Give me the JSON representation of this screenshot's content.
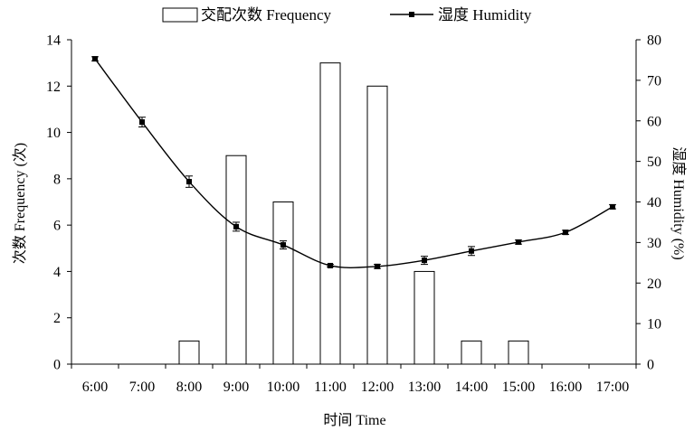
{
  "chart_data": {
    "type": "bar",
    "categories": [
      "6:00",
      "7:00",
      "8:00",
      "9:00",
      "10:00",
      "11:00",
      "12:00",
      "13:00",
      "14:00",
      "15:00",
      "16:00",
      "17:00"
    ],
    "series": [
      {
        "name": "交配次数 Frequency",
        "type": "bar",
        "axis": "left",
        "values": [
          0,
          0,
          1,
          9,
          7,
          13,
          12,
          4,
          1,
          1,
          0,
          0
        ]
      },
      {
        "name": "湿度 Humidity",
        "type": "line",
        "axis": "right",
        "smooth": true,
        "marker": "square",
        "values": [
          75.3,
          59.7,
          45.0,
          33.9,
          29.4,
          24.3,
          24.1,
          25.6,
          27.9,
          30.1,
          32.5,
          38.8
        ],
        "error": [
          0.5,
          1.2,
          1.4,
          1.1,
          1.0,
          0.3,
          0.5,
          1.0,
          1.1,
          0.5,
          0.5,
          0.5
        ]
      }
    ],
    "xlabel": "时间 Time",
    "ylabel": "次数 Frequency (次)",
    "ylabel_right": "湿度 Humidity (%)",
    "ylim": [
      0,
      14
    ],
    "ylim_right": [
      0,
      80
    ],
    "yticks": [
      "0",
      "2",
      "4",
      "6",
      "8",
      "10",
      "12",
      "14"
    ],
    "yticks_right": [
      "0",
      "10",
      "20",
      "30",
      "40",
      "50",
      "60",
      "70",
      "80"
    ],
    "grid": false,
    "legend": "top-center",
    "colors": {
      "bar_fill": "#ffffff",
      "bar_stroke": "#000000",
      "line": "#000000",
      "axis": "#000000"
    }
  }
}
